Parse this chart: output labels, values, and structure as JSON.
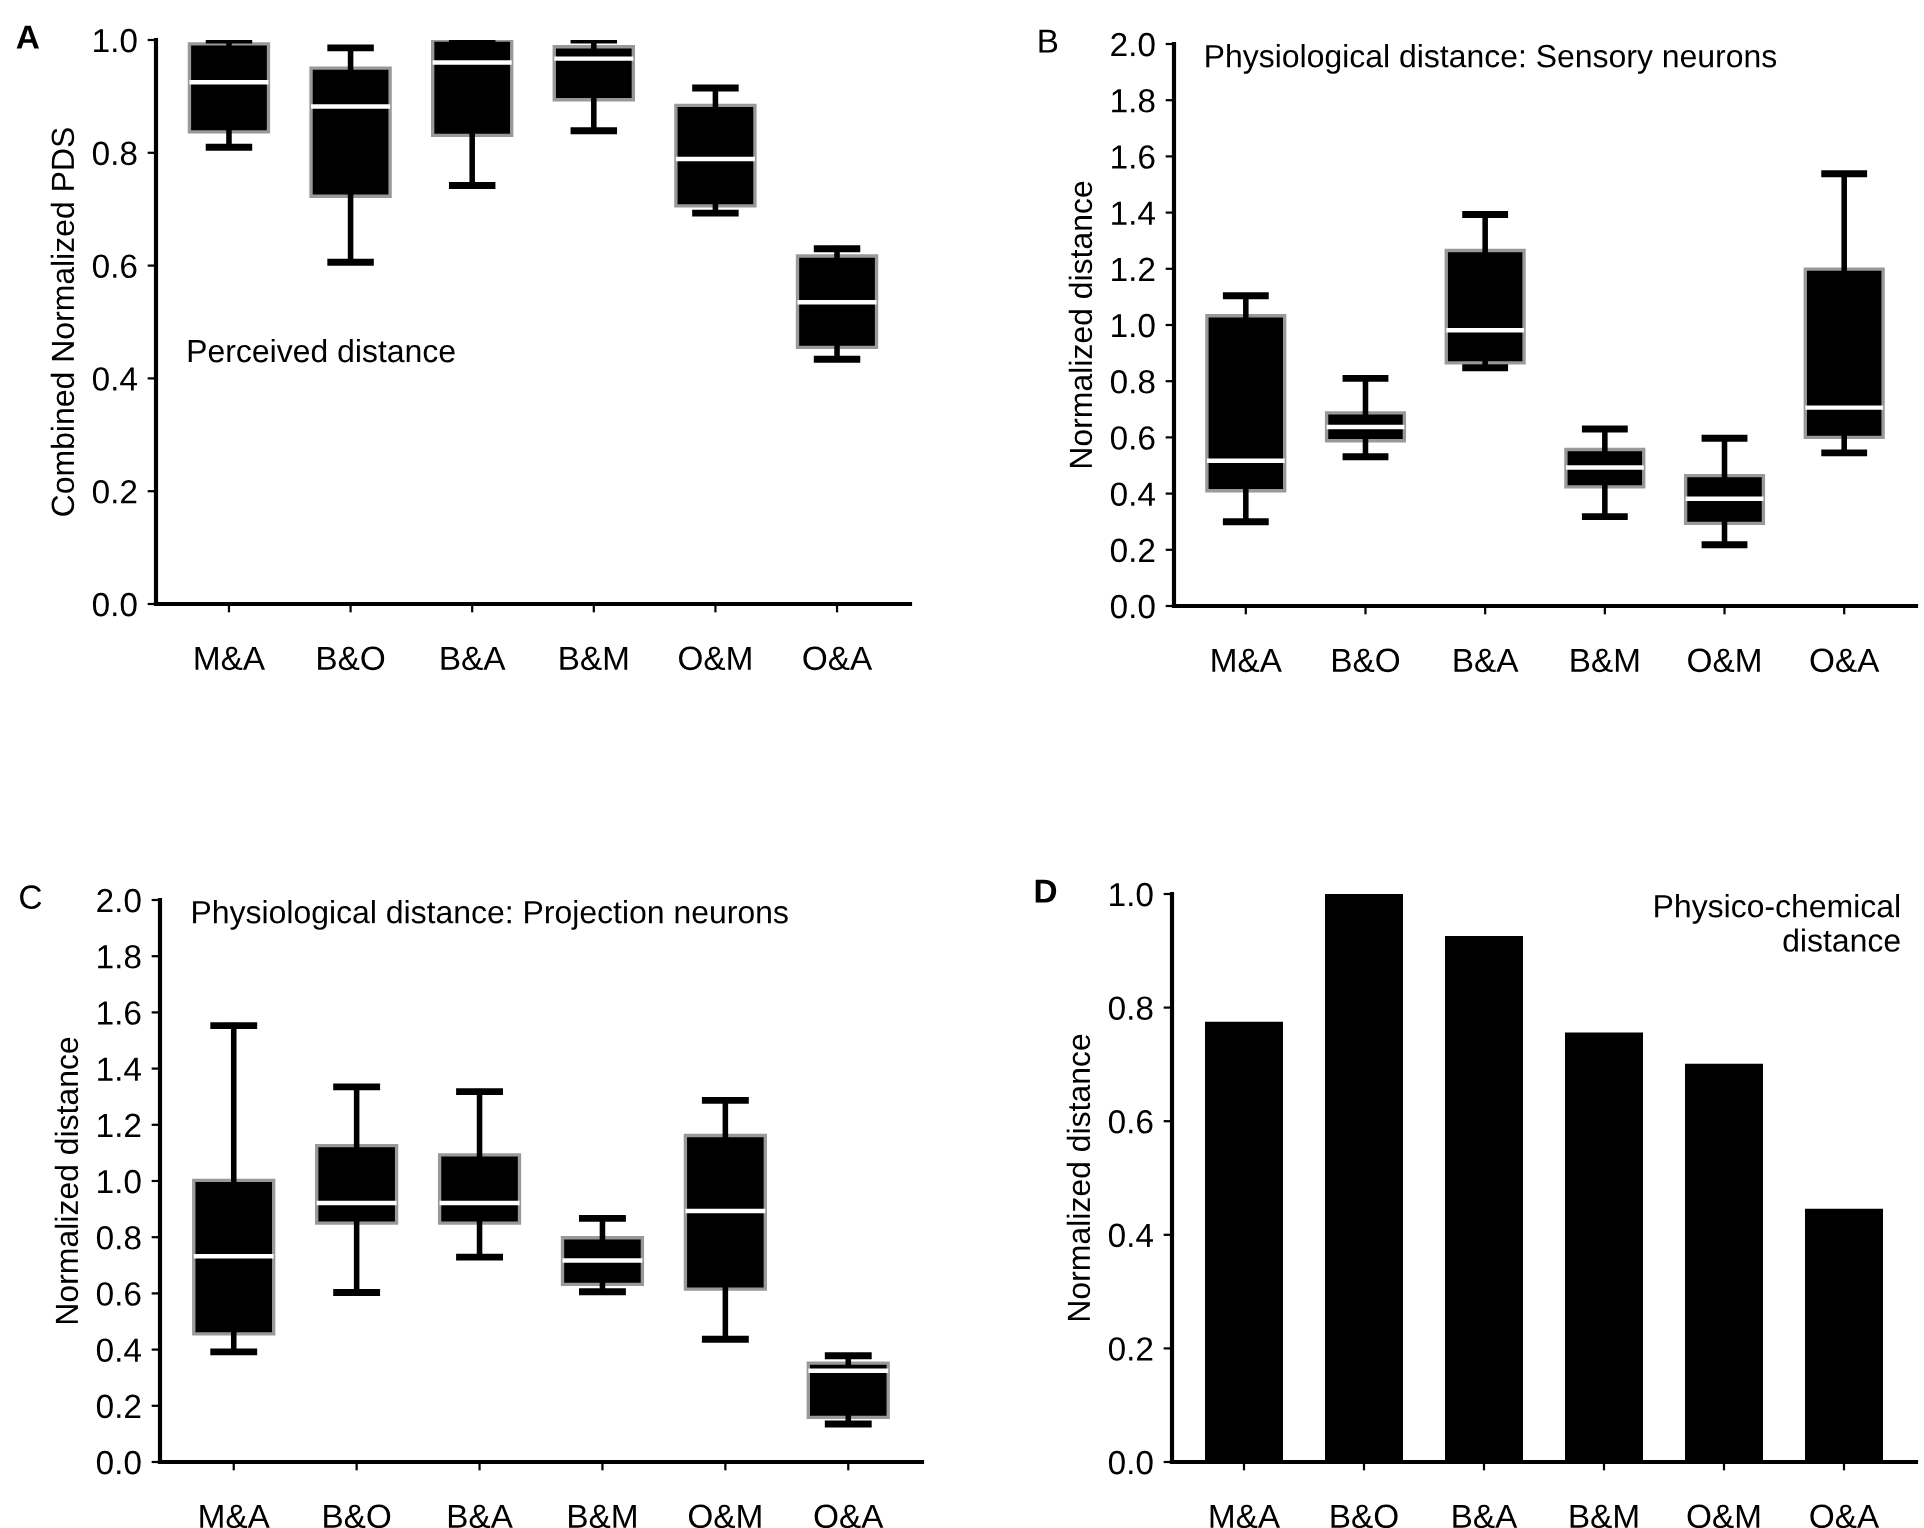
{
  "chart_data": [
    {
      "type": "box",
      "title": "Perceived distance",
      "ylabel": "Combined Normalized PDS",
      "annotations": [
        "A"
      ],
      "categories": [
        "M&A",
        "B&O",
        "B&A",
        "B&M",
        "O&M",
        "O&A"
      ],
      "ylim": [
        0,
        1.0
      ],
      "yticks": [
        {
          "value": 0,
          "label": "0.0"
        },
        0.2,
        0.4,
        0.6,
        0.8,
        {
          "value": 1,
          "label": "1.0"
        }
      ],
      "grid": false,
      "legend": false,
      "boxes": [
        {
          "low": 0.81,
          "q1": 0.837,
          "median": 0.925,
          "q3": 0.993,
          "high": 1.0
        },
        {
          "low": 0.606,
          "q1": 0.723,
          "median": 0.882,
          "q3": 0.95,
          "high": 0.986
        },
        {
          "low": 0.742,
          "q1": 0.831,
          "median": 0.96,
          "q3": 1.0,
          "high": 1.0
        },
        {
          "low": 0.839,
          "q1": 0.894,
          "median": 0.967,
          "q3": 0.988,
          "high": 1.0
        },
        {
          "low": 0.693,
          "q1": 0.706,
          "median": 0.789,
          "q3": 0.884,
          "high": 0.915
        },
        {
          "low": 0.434,
          "q1": 0.455,
          "median": 0.535,
          "q3": 0.617,
          "high": 0.63
        }
      ]
    },
    {
      "type": "box",
      "title": "Physiological distance: Sensory neurons",
      "ylabel": "Normalized distance",
      "annotations": [
        "B"
      ],
      "categories": [
        "M&A",
        "B&O",
        "B&A",
        "B&M",
        "O&M",
        "O&A"
      ],
      "ylim": [
        0,
        2.0
      ],
      "yticks": [
        {
          "value": 0,
          "label": "0.0"
        },
        0.2,
        0.4,
        0.6,
        0.8,
        {
          "value": 1,
          "label": "1.0"
        },
        1.2,
        1.4,
        1.6,
        1.8,
        {
          "value": 2,
          "label": "2.0"
        }
      ],
      "grid": false,
      "legend": false,
      "boxes": [
        {
          "low": 0.3,
          "q1": 0.41,
          "median": 0.517,
          "q3": 1.033,
          "high": 1.104
        },
        {
          "low": 0.531,
          "q1": 0.588,
          "median": 0.637,
          "q3": 0.687,
          "high": 0.81
        },
        {
          "low": 0.848,
          "q1": 0.865,
          "median": 0.981,
          "q3": 1.265,
          "high": 1.393
        },
        {
          "low": 0.318,
          "q1": 0.424,
          "median": 0.493,
          "q3": 0.557,
          "high": 0.63
        },
        {
          "low": 0.218,
          "q1": 0.294,
          "median": 0.382,
          "q3": 0.464,
          "high": 0.597
        },
        {
          "low": 0.545,
          "q1": 0.6,
          "median": 0.706,
          "q3": 1.199,
          "high": 1.538
        }
      ]
    },
    {
      "type": "box",
      "title": "Physiological distance: Projection neurons",
      "ylabel": "Normalized distance",
      "annotations": [
        "C"
      ],
      "categories": [
        "M&A",
        "B&O",
        "B&A",
        "B&M",
        "O&M",
        "O&A"
      ],
      "ylim": [
        0,
        2.0
      ],
      "yticks": [
        {
          "value": 0,
          "label": "0.0"
        },
        0.2,
        0.4,
        0.6,
        0.8,
        {
          "value": 1,
          "label": "1.0"
        },
        1.2,
        1.4,
        1.6,
        1.8,
        {
          "value": 2,
          "label": "2.0"
        }
      ],
      "grid": false,
      "legend": false,
      "boxes": [
        {
          "low": 0.392,
          "q1": 0.456,
          "median": 0.732,
          "q3": 1.002,
          "high": 1.553
        },
        {
          "low": 0.603,
          "q1": 0.85,
          "median": 0.922,
          "q3": 1.126,
          "high": 1.335
        },
        {
          "low": 0.729,
          "q1": 0.85,
          "median": 0.922,
          "q3": 1.093,
          "high": 1.318
        },
        {
          "low": 0.606,
          "q1": 0.632,
          "median": 0.717,
          "q3": 0.798,
          "high": 0.867
        },
        {
          "low": 0.437,
          "q1": 0.615,
          "median": 0.893,
          "q3": 1.162,
          "high": 1.287
        },
        {
          "low": 0.135,
          "q1": 0.159,
          "median": 0.325,
          "q3": 0.352,
          "high": 0.378
        }
      ]
    },
    {
      "type": "bar",
      "title": "Physico-chemical\ndistance",
      "ylabel": "Normalized distance",
      "annotations": [
        "D"
      ],
      "categories": [
        "M&A",
        "B&O",
        "B&A",
        "B&M",
        "O&M",
        "O&A"
      ],
      "ylim": [
        0,
        1.0
      ],
      "yticks": [
        {
          "value": 0,
          "label": "0.0"
        },
        0.2,
        0.4,
        0.6,
        0.8,
        {
          "value": 1,
          "label": "1.0"
        }
      ],
      "grid": false,
      "legend": false,
      "color": "#000000",
      "values": [
        0.775,
        1.0,
        0.926,
        0.756,
        0.701,
        0.446
      ]
    }
  ]
}
